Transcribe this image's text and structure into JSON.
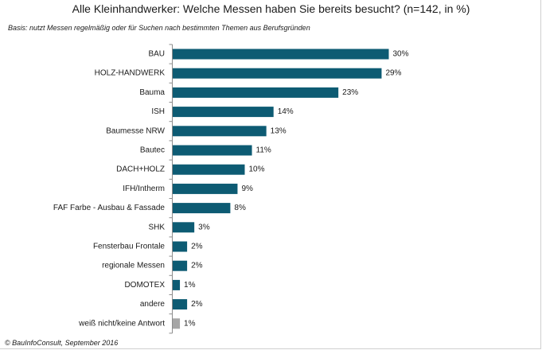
{
  "chart_data": {
    "type": "bar",
    "orientation": "horizontal",
    "title": "Alle Kleinhandwerker: Welche Messen haben Sie bereits besucht? (n=142, in %)",
    "subtitle": "Basis: nutzt Messen regelmäßig oder für Suchen nach bestimmten Themen aus Berufsgründen",
    "source": "© BauInfoConsult, September 2016",
    "value_suffix": "%",
    "categories": [
      "BAU",
      "HOLZ-HANDWERK",
      "Bauma",
      "ISH",
      "Baumesse NRW",
      "Bautec",
      "DACH+HOLZ",
      "IFH/Intherm",
      "FAF Farbe - Ausbau & Fassade",
      "SHK",
      "Fensterbau Frontale",
      "regionale Messen",
      "DOMOTEX",
      "andere",
      "weiß nicht/keine Antwort"
    ],
    "values": [
      30,
      29,
      23,
      14,
      13,
      11,
      10,
      9,
      8,
      3,
      2,
      2,
      1,
      2,
      1
    ],
    "bar_colors": [
      "#0d5b73",
      "#0d5b73",
      "#0d5b73",
      "#0d5b73",
      "#0d5b73",
      "#0d5b73",
      "#0d5b73",
      "#0d5b73",
      "#0d5b73",
      "#0d5b73",
      "#0d5b73",
      "#0d5b73",
      "#0d5b73",
      "#0d5b73",
      "#a6a6a6"
    ],
    "grid": false,
    "legend": "none",
    "xlim": [
      0,
      30
    ]
  }
}
